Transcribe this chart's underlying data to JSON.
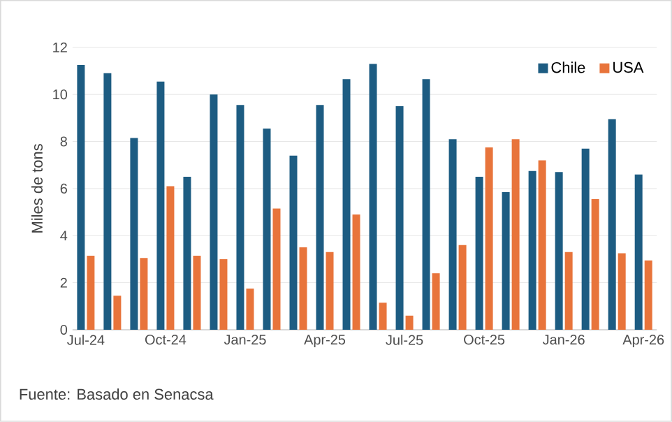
{
  "chart_data": {
    "type": "bar",
    "categories": [
      "Jul-24",
      null,
      null,
      "Oct-24",
      null,
      null,
      "Jan-25",
      null,
      null,
      "Apr-25",
      null,
      null,
      "Jul-25",
      null,
      null,
      "Oct-25",
      null,
      null,
      "Jan-26",
      null,
      null,
      "Apr-26"
    ],
    "series": [
      {
        "name": "Chile",
        "color": "#1d5c82",
        "values": [
          11.25,
          10.9,
          8.15,
          10.55,
          6.5,
          10.0,
          9.55,
          8.55,
          7.4,
          9.55,
          10.65,
          11.3,
          9.5,
          10.65,
          8.1,
          6.5,
          5.85,
          6.75,
          6.7,
          7.7,
          8.95,
          6.6
        ]
      },
      {
        "name": "USA",
        "color": "#e8743b",
        "values": [
          3.15,
          1.45,
          3.05,
          6.1,
          3.15,
          3.0,
          1.75,
          5.15,
          3.5,
          3.3,
          4.9,
          1.15,
          0.6,
          2.4,
          3.6,
          7.75,
          8.1,
          7.2,
          3.3,
          5.55,
          3.25,
          2.95
        ]
      }
    ],
    "ylabel": "Miles de tons",
    "ylim": [
      0,
      12
    ],
    "yticks": [
      0,
      2,
      4,
      6,
      8,
      10,
      12
    ],
    "grid": "y",
    "legend": "top right",
    "annotations": [
      "Fuente: Basado en Senacsa"
    ]
  }
}
